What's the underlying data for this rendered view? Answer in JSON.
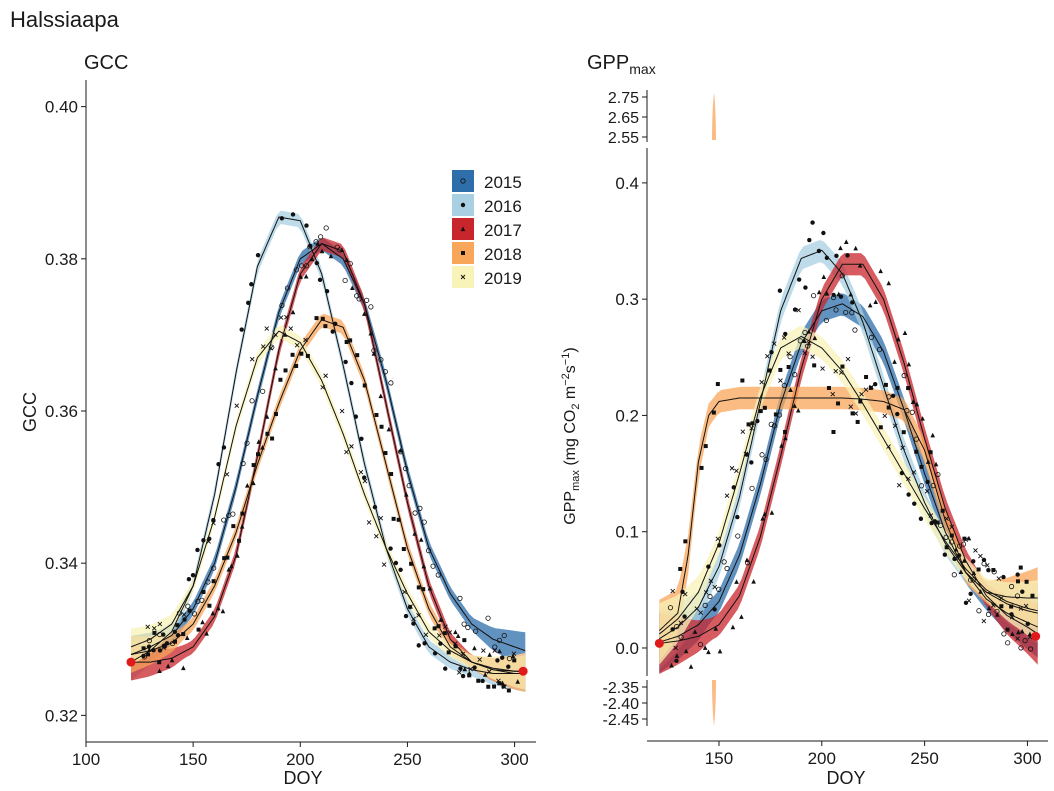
{
  "figure": {
    "title": "Halssiaapa"
  },
  "colors": {
    "2015": "#2e6eaa",
    "2016": "#a8cfe2",
    "2017": "#c8262c",
    "2018": "#f8a65a",
    "2019": "#f8f3b8",
    "endpoint": "#e0191b"
  },
  "legend": {
    "position": "top-right of GCC panel",
    "items": [
      {
        "label": "2015",
        "color": "#2e6eaa",
        "marker": "open-circle"
      },
      {
        "label": "2016",
        "color": "#a8cfe2",
        "marker": "dot"
      },
      {
        "label": "2017",
        "color": "#c8262c",
        "marker": "triangle"
      },
      {
        "label": "2018",
        "color": "#f8a65a",
        "marker": "square"
      },
      {
        "label": "2019",
        "color": "#f8f3b8",
        "marker": "cross"
      }
    ]
  },
  "chart_data": [
    {
      "type": "scatter",
      "title": "GCC",
      "xlabel": "DOY",
      "ylabel": "GCC",
      "xlim": [
        100,
        310
      ],
      "ylim": [
        0.3165,
        0.4035
      ],
      "xticks": [
        "100",
        "150",
        "200",
        "250",
        "300"
      ],
      "yticks": [
        "0.32",
        "0.34",
        "0.36",
        "0.38",
        "0.40"
      ],
      "grid": false,
      "endpoints": [
        [
          121,
          0.327
        ],
        [
          304,
          0.3258
        ]
      ],
      "series": [
        {
          "name": "2015",
          "curve_x": [
            121,
            130,
            140,
            150,
            160,
            170,
            180,
            190,
            200,
            210,
            220,
            230,
            240,
            250,
            260,
            270,
            280,
            290,
            300,
            305
          ],
          "curve_y": [
            0.328,
            0.329,
            0.3305,
            0.334,
            0.34,
            0.35,
            0.362,
            0.373,
            0.38,
            0.382,
            0.38,
            0.374,
            0.364,
            0.352,
            0.342,
            0.336,
            0.332,
            0.33,
            0.329,
            0.3285
          ]
        },
        {
          "name": "2016",
          "curve_x": [
            121,
            130,
            140,
            150,
            160,
            170,
            180,
            190,
            200,
            210,
            220,
            230,
            240,
            250,
            260,
            270,
            280,
            290,
            300,
            305
          ],
          "curve_y": [
            0.327,
            0.3285,
            0.331,
            0.337,
            0.349,
            0.365,
            0.379,
            0.3855,
            0.385,
            0.378,
            0.366,
            0.353,
            0.342,
            0.334,
            0.329,
            0.327,
            0.326,
            0.3255,
            0.3255,
            0.3255
          ]
        },
        {
          "name": "2017",
          "curve_x": [
            121,
            130,
            140,
            150,
            160,
            170,
            180,
            190,
            200,
            210,
            220,
            230,
            240,
            250,
            260,
            270,
            280,
            290,
            300,
            305
          ],
          "curve_y": [
            0.327,
            0.327,
            0.3275,
            0.329,
            0.333,
            0.341,
            0.354,
            0.368,
            0.378,
            0.382,
            0.381,
            0.374,
            0.361,
            0.348,
            0.337,
            0.33,
            0.327,
            0.326,
            0.3258,
            0.3258
          ]
        },
        {
          "name": "2018",
          "curve_x": [
            121,
            130,
            140,
            150,
            160,
            170,
            180,
            190,
            200,
            210,
            220,
            230,
            240,
            250,
            260,
            270,
            280,
            290,
            300,
            305
          ],
          "curve_y": [
            0.328,
            0.3285,
            0.3295,
            0.332,
            0.337,
            0.344,
            0.353,
            0.361,
            0.368,
            0.372,
            0.371,
            0.364,
            0.353,
            0.342,
            0.334,
            0.329,
            0.327,
            0.326,
            0.3255,
            0.3255
          ]
        },
        {
          "name": "2019",
          "curve_x": [
            121,
            130,
            140,
            150,
            160,
            170,
            180,
            190,
            200,
            210,
            220,
            230,
            240,
            250,
            260,
            270,
            280,
            290,
            300,
            305
          ],
          "curve_y": [
            0.329,
            0.33,
            0.332,
            0.337,
            0.346,
            0.358,
            0.367,
            0.3705,
            0.369,
            0.364,
            0.357,
            0.349,
            0.342,
            0.336,
            0.331,
            0.3285,
            0.327,
            0.3262,
            0.3258,
            0.3258
          ]
        }
      ]
    },
    {
      "type": "scatter",
      "title": "GPP",
      "title_sub": "max",
      "xlabel": "DOY",
      "ylabel": "GPP",
      "ylabel_sub": "max",
      "ylabel_unit": " (mg CO",
      "ylabel_sub2": "2",
      "ylabel_unit2": " m",
      "ylabel_sup1": "−2",
      "ylabel_unit3": "s",
      "ylabel_sup2": "−1",
      "ylabel_close": ")",
      "xlim": [
        115,
        310
      ],
      "ylim": [
        -0.08,
        0.43
      ],
      "axis_breaks": {
        "upper": {
          "ticks": [
            "2.75",
            "2.65",
            "2.55"
          ],
          "values": [
            2.75,
            2.65,
            2.55
          ]
        },
        "lower": {
          "ticks": [
            "-2.35",
            "-2.40",
            "-2.45"
          ],
          "values": [
            -2.35,
            -2.4,
            -2.45
          ]
        }
      },
      "xticks": [
        "150",
        "200",
        "250",
        "300"
      ],
      "yticks": [
        "0.0",
        "0.1",
        "0.2",
        "0.3",
        "0.4"
      ],
      "grid": false,
      "endpoints": [
        [
          121,
          0.004
        ],
        [
          304,
          0.01
        ]
      ],
      "series": [
        {
          "name": "2015",
          "curve_x": [
            121,
            130,
            140,
            150,
            160,
            170,
            180,
            190,
            200,
            210,
            220,
            230,
            240,
            250,
            260,
            270,
            280,
            290,
            300,
            305
          ],
          "curve_y": [
            0.005,
            0.01,
            0.02,
            0.04,
            0.08,
            0.14,
            0.21,
            0.262,
            0.29,
            0.296,
            0.285,
            0.255,
            0.205,
            0.15,
            0.1,
            0.065,
            0.042,
            0.03,
            0.022,
            0.018
          ]
        },
        {
          "name": "2016",
          "curve_x": [
            121,
            130,
            140,
            150,
            160,
            170,
            180,
            190,
            200,
            210,
            220,
            230,
            240,
            250,
            260,
            270,
            280,
            290,
            300,
            305
          ],
          "curve_y": [
            0.008,
            0.018,
            0.035,
            0.07,
            0.13,
            0.21,
            0.29,
            0.335,
            0.342,
            0.322,
            0.28,
            0.225,
            0.17,
            0.125,
            0.09,
            0.065,
            0.048,
            0.038,
            0.032,
            0.03
          ]
        },
        {
          "name": "2017",
          "curve_x": [
            121,
            130,
            140,
            150,
            160,
            170,
            180,
            190,
            200,
            210,
            220,
            230,
            240,
            250,
            260,
            270,
            280,
            290,
            300,
            305
          ],
          "curve_y": [
            0.004,
            0.006,
            0.01,
            0.02,
            0.045,
            0.095,
            0.165,
            0.24,
            0.3,
            0.33,
            0.33,
            0.3,
            0.245,
            0.18,
            0.12,
            0.075,
            0.045,
            0.028,
            0.018,
            0.012
          ]
        },
        {
          "name": "2018",
          "curve_x": [
            121,
            130,
            135,
            140,
            145,
            150,
            160,
            170,
            180,
            190,
            200,
            210,
            220,
            230,
            240,
            250,
            260,
            270,
            280,
            290,
            300,
            305
          ],
          "curve_y": [
            0.015,
            0.03,
            0.08,
            0.16,
            0.2,
            0.212,
            0.215,
            0.215,
            0.215,
            0.215,
            0.215,
            0.215,
            0.214,
            0.212,
            0.205,
            0.17,
            0.11,
            0.065,
            0.048,
            0.044,
            0.043,
            0.043
          ]
        },
        {
          "name": "2019",
          "curve_x": [
            121,
            130,
            140,
            150,
            160,
            170,
            180,
            190,
            200,
            210,
            220,
            230,
            240,
            250,
            260,
            270,
            280,
            290,
            300,
            305
          ],
          "curve_y": [
            0.012,
            0.025,
            0.048,
            0.09,
            0.15,
            0.215,
            0.258,
            0.268,
            0.258,
            0.238,
            0.21,
            0.18,
            0.15,
            0.12,
            0.092,
            0.068,
            0.05,
            0.04,
            0.034,
            0.032
          ]
        }
      ]
    }
  ]
}
